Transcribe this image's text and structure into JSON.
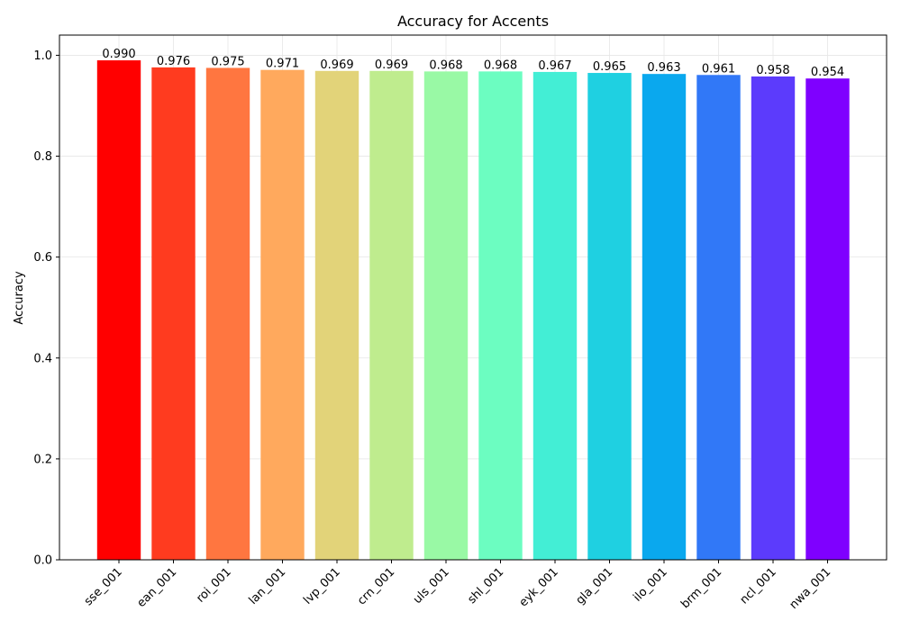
{
  "chart_data": {
    "type": "bar",
    "title": "Accuracy for Accents",
    "xlabel": "",
    "ylabel": "Accuracy",
    "ylim": [
      0,
      1.04
    ],
    "yticks": [
      "0.0",
      "0.2",
      "0.4",
      "0.6",
      "0.8",
      "1.0"
    ],
    "grid": true,
    "categories": [
      "sse_001",
      "ean_001",
      "roi_001",
      "lan_001",
      "lvp_001",
      "crn_001",
      "uls_001",
      "shl_001",
      "eyk_001",
      "gla_001",
      "ilo_001",
      "brm_001",
      "ncl_001",
      "nwa_001"
    ],
    "values": [
      0.99,
      0.976,
      0.975,
      0.971,
      0.969,
      0.969,
      0.968,
      0.968,
      0.967,
      0.965,
      0.963,
      0.961,
      0.958,
      0.954
    ],
    "value_labels": [
      "0.990",
      "0.976",
      "0.975",
      "0.971",
      "0.969",
      "0.969",
      "0.968",
      "0.968",
      "0.967",
      "0.965",
      "0.963",
      "0.961",
      "0.958",
      "0.954"
    ],
    "colors": [
      "#ff0000",
      "#ff3b1f",
      "#ff7640",
      "#ffa95d",
      "#e2d379",
      "#bfec8e",
      "#99f9a5",
      "#6cfdc1",
      "#43eed5",
      "#1fd0e1",
      "#0aa8ee",
      "#3178f7",
      "#5c3bfc",
      "#7f00ff"
    ]
  }
}
